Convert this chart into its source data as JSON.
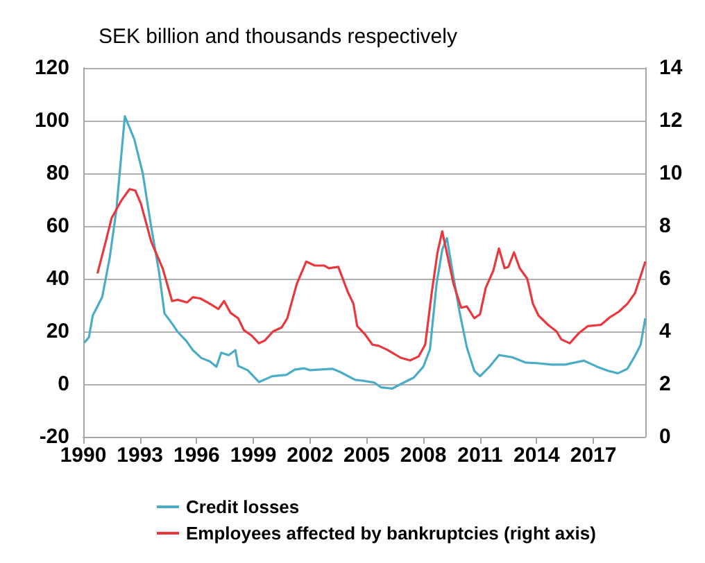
{
  "chart_data": {
    "type": "line",
    "subtitle": "SEK billion and thousands respectively",
    "series": [
      {
        "name": "Credit losses",
        "color": "#4bacc6",
        "x": [
          1990.05,
          1990.3,
          1990.5,
          1991.0,
          1991.4,
          1991.75,
          1992.2,
          1992.7,
          1993.15,
          1993.6,
          1994.0,
          1994.3,
          1994.7,
          1995.0,
          1995.45,
          1995.8,
          1996.25,
          1996.7,
          1997.05,
          1997.3,
          1997.7,
          1998.05,
          1998.2,
          1998.7,
          1999.3,
          2000.0,
          2000.75,
          2001.2,
          2001.7,
          2002.0,
          2003.2,
          2003.6,
          2004.4,
          2004.8,
          2005.4,
          2005.75,
          2006.35,
          2006.8,
          2007.5,
          2008.0,
          2008.35,
          2008.7,
          2009.0,
          2009.25,
          2009.5,
          2009.9,
          2010.3,
          2010.7,
          2011.0,
          2011.5,
          2012.0,
          2012.7,
          2013.4,
          2014.1,
          2014.8,
          2015.5,
          2016.5,
          2017.2,
          2017.8,
          2018.3,
          2018.8,
          2019.2,
          2019.5,
          2019.75
        ],
        "values": [
          15.7,
          17.8,
          26,
          33,
          48,
          66,
          101.7,
          93,
          80,
          59.5,
          43,
          26.8,
          23,
          19.8,
          16.4,
          12.9,
          9.9,
          8.6,
          6.6,
          11.9,
          11,
          12.9,
          6.9,
          5.3,
          0.8,
          3,
          3.5,
          5.5,
          6,
          5.3,
          5.8,
          4.6,
          1.6,
          1.3,
          0.6,
          -1.2,
          -1.7,
          0,
          2.5,
          6.6,
          13.2,
          38,
          51,
          55.4,
          44.7,
          28,
          14,
          5,
          3,
          6.6,
          11,
          10.2,
          8.2,
          7.9,
          7.4,
          7.4,
          8.9,
          6.6,
          5,
          4.1,
          5.8,
          10.7,
          14.9,
          25
        ]
      },
      {
        "name": "Employees affected by bankruptcies (right axis)",
        "color": "#e8383d",
        "axis": "y2",
        "x": [
          1990.75,
          1991.15,
          1991.5,
          1992.0,
          1992.45,
          1992.75,
          1993.05,
          1993.6,
          1994.2,
          1994.7,
          1995.0,
          1995.5,
          1995.8,
          1996.2,
          1996.7,
          1997.15,
          1997.45,
          1997.8,
          1998.2,
          1998.5,
          1998.9,
          1999.3,
          1999.6,
          2000.05,
          2000.5,
          2000.8,
          2001.3,
          2001.8,
          2002.25,
          2002.75,
          2003.0,
          2003.5,
          2004.0,
          2004.3,
          2004.5,
          2004.9,
          2005.3,
          2005.65,
          2006.1,
          2006.8,
          2007.3,
          2007.75,
          2008.1,
          2008.45,
          2008.75,
          2009.0,
          2009.3,
          2009.6,
          2010.0,
          2010.3,
          2010.7,
          2011.0,
          2011.3,
          2011.7,
          2012.0,
          2012.3,
          2012.5,
          2012.8,
          2013.1,
          2013.5,
          2013.8,
          2014.1,
          2014.6,
          2015.05,
          2015.3,
          2015.75,
          2016.25,
          2016.7,
          2017.4,
          2017.9,
          2018.35,
          2018.8,
          2019.2,
          2019.5,
          2019.75
        ],
        "values": [
          6.2,
          7.3,
          8.3,
          8.95,
          9.4,
          9.35,
          8.85,
          7.4,
          6.4,
          5.15,
          5.2,
          5.1,
          5.3,
          5.25,
          5.05,
          4.85,
          5.15,
          4.7,
          4.5,
          4.05,
          3.85,
          3.55,
          3.65,
          4.0,
          4.15,
          4.5,
          5.8,
          6.65,
          6.5,
          6.5,
          6.4,
          6.45,
          5.5,
          5.05,
          4.2,
          3.9,
          3.5,
          3.45,
          3.3,
          3.0,
          2.9,
          3.05,
          3.5,
          5.5,
          7.0,
          7.8,
          6.8,
          5.8,
          4.9,
          4.95,
          4.5,
          4.65,
          5.65,
          6.3,
          7.15,
          6.4,
          6.45,
          7.0,
          6.4,
          6.0,
          5.05,
          4.6,
          4.25,
          4.0,
          3.7,
          3.55,
          3.95,
          4.2,
          4.25,
          4.55,
          4.75,
          5.05,
          5.45,
          6.1,
          6.65
        ]
      }
    ],
    "xlim": [
      1990,
      2019.75
    ],
    "xticks": [
      1990,
      1993,
      1996,
      1999,
      2002,
      2005,
      2008,
      2011,
      2014,
      2017
    ],
    "ylim": [
      -20,
      120
    ],
    "yticks": [
      -20,
      0,
      20,
      40,
      60,
      80,
      100,
      120
    ],
    "y2lim": [
      0,
      14
    ],
    "y2ticks": [
      0,
      2,
      4,
      6,
      8,
      10,
      12,
      14
    ],
    "grid": "y",
    "legend": "bottom",
    "marker": "none",
    "line_style": "solid"
  }
}
